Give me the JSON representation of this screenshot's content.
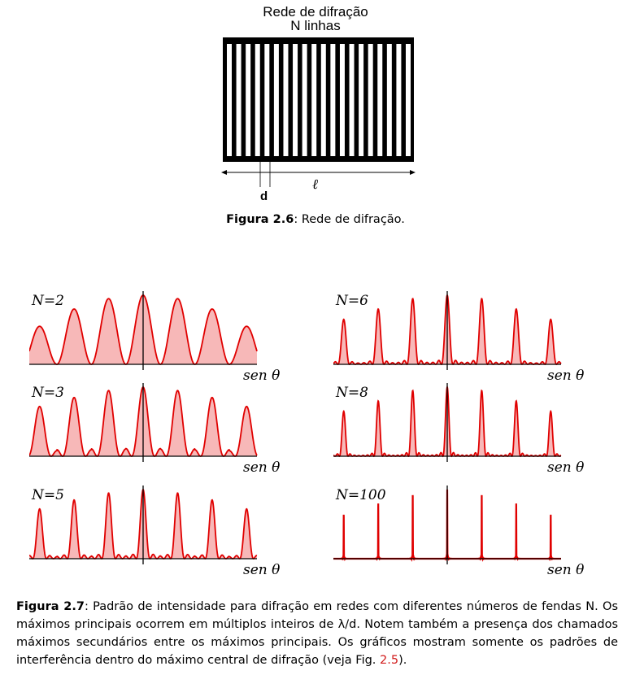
{
  "figure26": {
    "title_line1": "Rede de difração",
    "title_line2": "N linhas",
    "d_label": "d",
    "l_label": "ℓ",
    "caption_label": "Figura 2.6",
    "caption_text": ": Rede de difração."
  },
  "figure27": {
    "caption_label": "Figura 2.7",
    "caption_text_1": ": Padrão de intensidade para difração em redes com diferentes números de fendas N. Os máximos principais ocorrem em múltiplos inteiros de λ/d. Notem também a presença dos chamados máximos secundários entre os máximos principais. Os gráficos mostram somente os padrões de interferência dentro do máximo central de difração (veja Fig. ",
    "caption_ref": "2.5",
    "caption_text_2": ")."
  },
  "colors": {
    "curve": "#e00000",
    "fill": "#f7b8b8",
    "axis": "#000000"
  },
  "chart_data": [
    {
      "type": "line",
      "label": "N=2",
      "N": 2,
      "xlabel": "sen θ",
      "x_range": [
        -3.3,
        3.3
      ],
      "principal_maxima_x": [
        -3,
        -2,
        -1,
        0,
        1,
        2,
        3
      ],
      "envelope_peaks": [
        0.55,
        0.8,
        0.95,
        1.0,
        0.95,
        0.8,
        0.55
      ]
    },
    {
      "type": "line",
      "label": "N=3",
      "N": 3,
      "xlabel": "sen θ",
      "x_range": [
        -3.3,
        3.3
      ],
      "principal_maxima_x": [
        -3,
        -2,
        -1,
        0,
        1,
        2,
        3
      ],
      "envelope_peaks": [
        0.72,
        0.85,
        0.95,
        1.0,
        0.95,
        0.85,
        0.72
      ]
    },
    {
      "type": "line",
      "label": "N=5",
      "N": 5,
      "xlabel": "sen θ",
      "x_range": [
        -3.3,
        3.3
      ],
      "principal_maxima_x": [
        -3,
        -2,
        -1,
        0,
        1,
        2,
        3
      ],
      "envelope_peaks": [
        0.72,
        0.85,
        0.95,
        1.0,
        0.95,
        0.85,
        0.72
      ]
    },
    {
      "type": "line",
      "label": "N=6",
      "N": 6,
      "xlabel": "sen θ",
      "x_range": [
        -3.3,
        3.3
      ],
      "principal_maxima_x": [
        -3,
        -2,
        -1,
        0,
        1,
        2,
        3
      ],
      "envelope_peaks": [
        0.65,
        0.8,
        0.95,
        1.0,
        0.95,
        0.8,
        0.65
      ]
    },
    {
      "type": "line",
      "label": "N=8",
      "N": 8,
      "xlabel": "sen θ",
      "x_range": [
        -3.3,
        3.3
      ],
      "principal_maxima_x": [
        -3,
        -2,
        -1,
        0,
        1,
        2,
        3
      ],
      "envelope_peaks": [
        0.65,
        0.8,
        0.95,
        1.0,
        0.95,
        0.8,
        0.65
      ]
    },
    {
      "type": "line",
      "label": "N=100",
      "N": 100,
      "xlabel": "sen θ",
      "x_range": [
        -3.3,
        3.3
      ],
      "principal_maxima_x": [
        -3,
        -2,
        -1,
        0,
        1,
        2,
        3
      ],
      "envelope_peaks": [
        0.65,
        0.8,
        0.95,
        1.0,
        0.95,
        0.8,
        0.65
      ]
    }
  ]
}
